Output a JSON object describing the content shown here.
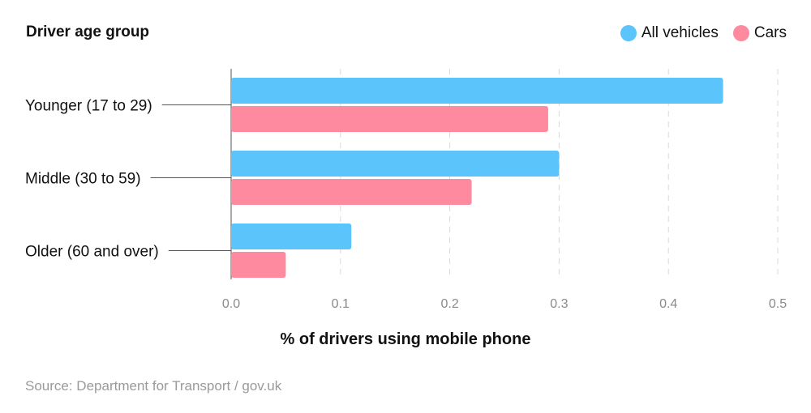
{
  "chart_data": {
    "type": "bar",
    "orientation": "horizontal",
    "title": "",
    "ylabel": "Driver age group",
    "xlabel": "% of drivers using mobile phone",
    "categories": [
      "Younger (17 to 29)",
      "Middle (30 to 59)",
      "Older (60 and over)"
    ],
    "series": [
      {
        "name": "All vehicles",
        "color": "#5bc5fb",
        "values": [
          0.45,
          0.3,
          0.11
        ]
      },
      {
        "name": "Cars",
        "color": "#fd8a9e",
        "values": [
          0.29,
          0.22,
          0.05
        ]
      }
    ],
    "xlim": [
      0,
      0.5
    ],
    "xticks": [
      "0.0",
      "0.1",
      "0.2",
      "0.3",
      "0.4",
      "0.5"
    ],
    "grid": "vertical dashed",
    "legend_position": "top-right",
    "source": "Source: Department for Transport / gov.uk"
  }
}
